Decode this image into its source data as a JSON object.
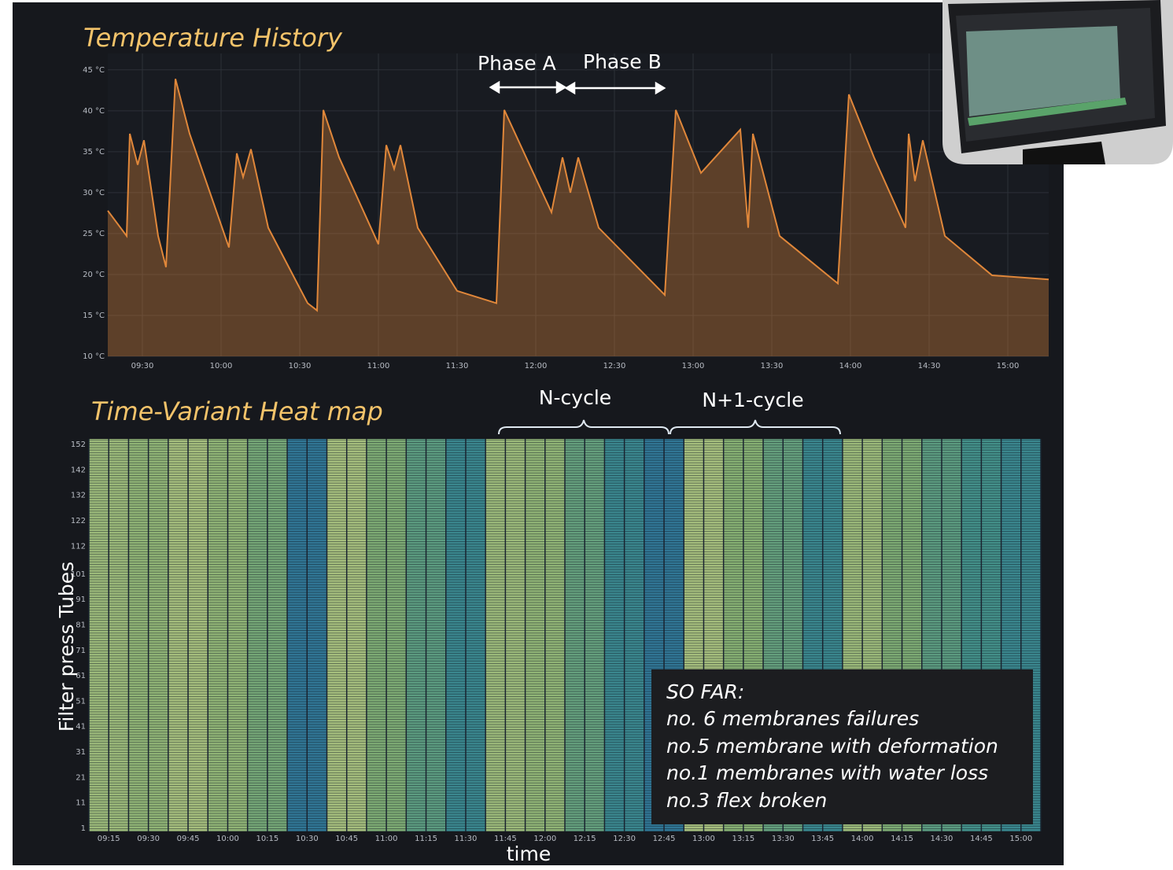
{
  "chart_data": [
    {
      "type": "line",
      "title": "Temperature History",
      "color": "#e0873a",
      "x": [
        9.28,
        9.4,
        9.42,
        9.47,
        9.51,
        9.6,
        9.65,
        9.71,
        9.8,
        10.05,
        10.1,
        10.14,
        10.19,
        10.3,
        10.55,
        10.61,
        10.65,
        10.75,
        11.0,
        11.05,
        11.1,
        11.14,
        11.25,
        11.5,
        11.75,
        11.8,
        12.1,
        12.17,
        12.22,
        12.27,
        12.4,
        12.82,
        12.89,
        13.05,
        13.3,
        13.35,
        13.38,
        13.55,
        13.92,
        13.99,
        14.15,
        14.35,
        14.37,
        14.41,
        14.46,
        14.6,
        14.9,
        15.26
      ],
      "values": [
        27.8,
        24.7,
        37.2,
        33.4,
        36.4,
        24.7,
        20.9,
        43.9,
        37.2,
        23.3,
        34.8,
        31.9,
        35.3,
        25.7,
        16.5,
        15.6,
        40.1,
        34.3,
        23.7,
        35.8,
        32.9,
        35.8,
        25.7,
        18.0,
        16.5,
        40.1,
        27.6,
        34.3,
        30.0,
        34.3,
        25.7,
        17.5,
        40.1,
        32.4,
        37.7,
        25.7,
        37.2,
        24.7,
        18.9,
        42.0,
        34.3,
        25.7,
        37.2,
        31.4,
        36.4,
        24.7,
        19.9,
        19.4
      ],
      "xlim": [
        9.28,
        15.26
      ],
      "xticks": [
        {
          "value": 9.5,
          "label": "09:30"
        },
        {
          "value": 10,
          "label": "10:00"
        },
        {
          "value": 10.5,
          "label": "10:30"
        },
        {
          "value": 11,
          "label": "11:00"
        },
        {
          "value": 11.5,
          "label": "11:30"
        },
        {
          "value": 12,
          "label": "12:00"
        },
        {
          "value": 12.5,
          "label": "12:30"
        },
        {
          "value": 13,
          "label": "13:00"
        },
        {
          "value": 13.5,
          "label": "13:30"
        },
        {
          "value": 14,
          "label": "14:00"
        },
        {
          "value": 14.5,
          "label": "14:30"
        },
        {
          "value": 15,
          "label": "15:00"
        }
      ],
      "ylim": [
        10,
        47
      ],
      "yticks": [
        {
          "value": 10,
          "label": "10 °C"
        },
        {
          "value": 15,
          "label": "15 °C"
        },
        {
          "value": 20,
          "label": "20 °C"
        },
        {
          "value": 25,
          "label": "25 °C"
        },
        {
          "value": 30,
          "label": "30 °C"
        },
        {
          "value": 35,
          "label": "35 °C"
        },
        {
          "value": 40,
          "label": "40 °C"
        },
        {
          "value": 45,
          "label": "45 °C"
        }
      ],
      "grid": true,
      "annotations": [
        "Phase A",
        "Phase B"
      ]
    },
    {
      "type": "heatmap",
      "title": "Time-Variant Heat map",
      "ylabel": "Filter press Tubes",
      "xlabel": "time",
      "categories": [
        "09:15",
        "09:30",
        "09:45",
        "10:00",
        "10:15",
        "10:30",
        "10:45",
        "11:00",
        "11:15",
        "11:30",
        "11:45",
        "12:00",
        "12:15",
        "12:30",
        "12:45",
        "13:00",
        "13:15",
        "13:30",
        "13:45",
        "14:00",
        "14:15",
        "14:30",
        "14:45",
        "15:00"
      ],
      "values": [
        34,
        33,
        35,
        33,
        30,
        18,
        35,
        31,
        27,
        22,
        34,
        33,
        28,
        22,
        18,
        35,
        32,
        28,
        22,
        34,
        31,
        27,
        24,
        22
      ],
      "zlim": [
        15,
        40
      ],
      "colors": [
        "#2a6a9c",
        "#3e8e8c",
        "#85b073",
        "#d9d88e"
      ],
      "ylim": [
        1,
        152
      ],
      "yticks": [
        1,
        11,
        21,
        31,
        41,
        51,
        61,
        71,
        81,
        91,
        101,
        112,
        122,
        132,
        142,
        152
      ],
      "annotations": [
        "N-cycle",
        "N+1-cycle"
      ]
    }
  ],
  "notes": {
    "title": "SO FAR:",
    "lines": [
      "no. 6 membranes failures",
      "no.5 membrane with deformation",
      "no.1 membranes with water loss",
      "no.3 flex broken"
    ]
  }
}
